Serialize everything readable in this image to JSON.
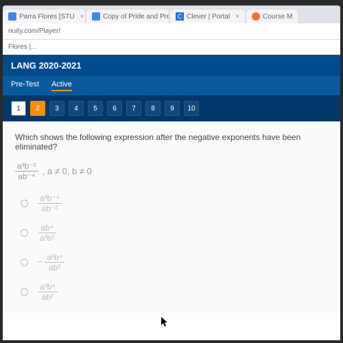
{
  "browser": {
    "tabs": [
      {
        "title": "Parra Flores [STU",
        "favicon_color": "#4285f4"
      },
      {
        "title": "Copy of Pride and Preju",
        "favicon_color": "#4285f4"
      },
      {
        "title": "Clever | Portal",
        "favicon_color": "#4285f4"
      },
      {
        "title": "Course M",
        "favicon_color": "#ff6b35"
      }
    ],
    "url": "nuity.com/Player/",
    "bookmark": "Flores |..."
  },
  "header": {
    "course": "LANG 2020-2021",
    "tab_pretest": "Pre-Test",
    "tab_active": "Active"
  },
  "nav": {
    "items": [
      "1",
      "2",
      "3",
      "4",
      "5",
      "6",
      "7",
      "8",
      "9",
      "10"
    ],
    "done_index": 0,
    "current_index": 1
  },
  "question": {
    "prompt": "Which shows the following expression after the negative exponents have been eliminated?",
    "given_num": "a³b⁻²",
    "given_den": "ab⁻⁴",
    "given_cond": ", a ≠ 0, b ≠ 0",
    "options": [
      {
        "num": "a³b⁻⁴",
        "den": "ab⁻²"
      },
      {
        "num": "ab⁴",
        "den": "a³b²"
      },
      {
        "num": "a³b⁴",
        "den": "ab²",
        "neg": true
      },
      {
        "num": "a³b⁴",
        "den": "ab²"
      }
    ]
  },
  "colors": {
    "header_bg": "#004b8d",
    "subheader_bg": "#0a5a9e",
    "nav_bg": "#003869",
    "accent": "#ff8c00"
  }
}
